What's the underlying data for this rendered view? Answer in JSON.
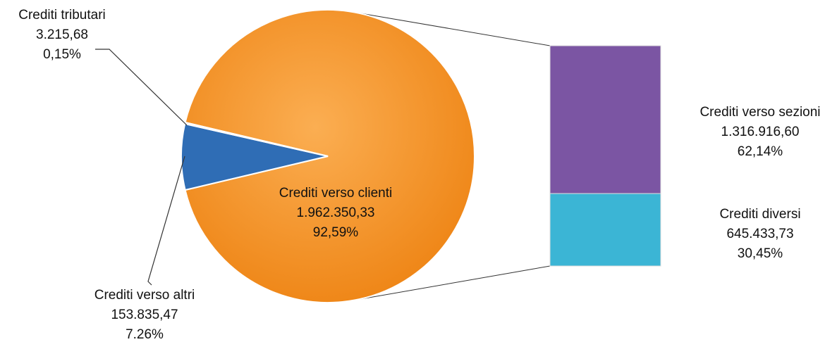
{
  "chart_data": {
    "type": "pie-of-bar",
    "pie": {
      "categories": [
        "Crediti verso clienti",
        "Crediti verso altri",
        "Crediti tributari"
      ],
      "values": [
        1962350.33,
        153835.47,
        3215.68
      ],
      "value_labels": [
        "1.962.350,33",
        "153.835,47",
        "3.215,68"
      ],
      "percents": [
        92.59,
        7.26,
        0.15
      ],
      "percent_labels": [
        "92,59%",
        "7.26%",
        "0,15%"
      ],
      "colors": [
        "#f5901e",
        "#2f6db5",
        "#2f6db5"
      ]
    },
    "bar": {
      "categories": [
        "Crediti verso sezioni",
        "Crediti diversi"
      ],
      "values": [
        1316916.6,
        645433.73
      ],
      "value_labels": [
        "1.316.916,60",
        "645.433,73"
      ],
      "percents": [
        62.14,
        30.45
      ],
      "percent_labels": [
        "62,14%",
        "30,45%"
      ],
      "colors": [
        "#7b55a3",
        "#3bb5d5"
      ]
    }
  }
}
